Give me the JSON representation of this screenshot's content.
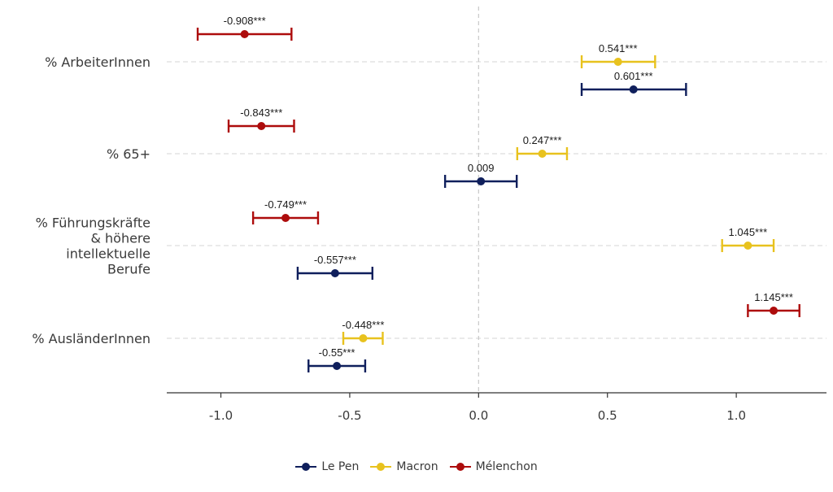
{
  "chart_data": {
    "type": "errorbar",
    "categories": [
      "% ArbeiterInnen",
      "% 65+",
      "% Führungskräfte & höhere intellektuelle Berufe",
      "% AusländerInnen"
    ],
    "category_lines": [
      [
        "% ArbeiterInnen"
      ],
      [
        "% 65+"
      ],
      [
        "% Führungskräfte",
        "& höhere",
        "intellektuelle",
        "Berufe"
      ],
      [
        "% AusländerInnen"
      ]
    ],
    "x_ticks": [
      "-1.0",
      "-0.5",
      "0.0",
      "0.5",
      "1.0"
    ],
    "x_tick_values": [
      -1.0,
      -0.5,
      0.0,
      0.5,
      1.0
    ],
    "xlim": [
      -1.21,
      1.35
    ],
    "reference_line_x": 0,
    "grid": "horizontal dashed at categories",
    "legend_position": "bottom",
    "series": [
      {
        "name": "Le Pen",
        "color": "#0f1f5c",
        "points": [
          {
            "category": "% ArbeiterInnen",
            "estimate": 0.601,
            "low": 0.4,
            "high": 0.805,
            "label": "0.601***"
          },
          {
            "category": "% 65+",
            "estimate": 0.009,
            "low": -0.13,
            "high": 0.148,
            "label": "0.009"
          },
          {
            "category": "% Führungskräfte & höhere intellektuelle Berufe",
            "estimate": -0.557,
            "low": -0.702,
            "high": -0.412,
            "label": "-0.557***"
          },
          {
            "category": "% AusländerInnen",
            "estimate": -0.55,
            "low": -0.66,
            "high": -0.44,
            "label": "-0.55***"
          }
        ]
      },
      {
        "name": "Macron",
        "color": "#e8c21e",
        "points": [
          {
            "category": "% ArbeiterInnen",
            "estimate": 0.541,
            "low": 0.4,
            "high": 0.685,
            "label": "0.541***"
          },
          {
            "category": "% 65+",
            "estimate": 0.247,
            "low": 0.15,
            "high": 0.343,
            "label": "0.247***"
          },
          {
            "category": "% Führungskräfte & höhere intellektuelle Berufe",
            "estimate": 1.045,
            "low": 0.945,
            "high": 1.145,
            "label": "1.045***"
          },
          {
            "category": "% AusländerInnen",
            "estimate": -0.448,
            "low": -0.525,
            "high": -0.372,
            "label": "-0.448***"
          }
        ]
      },
      {
        "name": "Mélenchon",
        "color": "#ad0c0c",
        "points": [
          {
            "category": "% ArbeiterInnen",
            "estimate": -0.908,
            "low": -1.09,
            "high": -0.726,
            "label": "-0.908***"
          },
          {
            "category": "% 65+",
            "estimate": -0.843,
            "low": -0.97,
            "high": -0.716,
            "label": "-0.843***"
          },
          {
            "category": "% Führungskräfte & höhere intellektuelle Berufe",
            "estimate": -0.749,
            "low": -0.875,
            "high": -0.623,
            "label": "-0.749***"
          },
          {
            "category": "% AusländerInnen",
            "estimate": 1.145,
            "low": 1.045,
            "high": 1.245,
            "label": "1.145***"
          }
        ]
      }
    ]
  }
}
